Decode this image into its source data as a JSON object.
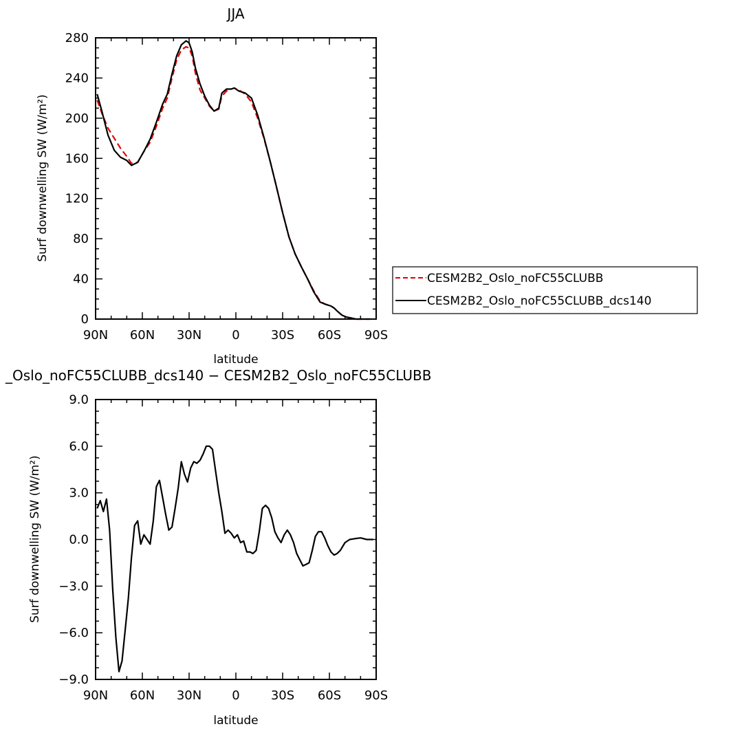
{
  "chart_data": [
    {
      "type": "line",
      "title": "JJA",
      "xlabel": "latitude",
      "ylabel": "Surf downwelling SW (W/m²)",
      "xlim": [
        90,
        -90
      ],
      "ylim": [
        0,
        280
      ],
      "x_tick_values": [
        90,
        60,
        30,
        0,
        -30,
        -60,
        -90
      ],
      "x_tick_labels": [
        "90N",
        "60N",
        "30N",
        "0",
        "30S",
        "60S",
        "90S"
      ],
      "y_tick_values": [
        0,
        40,
        80,
        120,
        160,
        200,
        240,
        280
      ],
      "y_tick_labels": [
        "0",
        "40",
        "80",
        "120",
        "160",
        "200",
        "240",
        "280"
      ],
      "legend_position": "right",
      "grid": false,
      "series": [
        {
          "name": "CESM2B2_Oslo_noFC55CLUBB",
          "color": "#e00000",
          "dash": "dashed",
          "x": [
            89,
            86,
            82,
            78,
            74,
            70,
            67,
            63,
            59,
            55,
            51,
            47,
            44,
            41,
            38,
            35,
            32,
            30,
            28,
            26,
            23,
            20,
            17,
            14,
            11,
            9,
            6,
            3,
            1,
            -2,
            -6,
            -10,
            -14,
            -18,
            -22,
            -26,
            -30,
            -34,
            -38,
            -42,
            -46,
            -50,
            -54,
            -57,
            -59,
            -61,
            -63,
            -65,
            -68,
            -71,
            -74,
            -77,
            -80,
            -83,
            -86
          ],
          "y": [
            218,
            205,
            190,
            180,
            170,
            162,
            155,
            156,
            167,
            176,
            192,
            210,
            220,
            240,
            258,
            268,
            271,
            270,
            262,
            245,
            228,
            220,
            212,
            207,
            209,
            222,
            227,
            229,
            230,
            228,
            224,
            216,
            200,
            180,
            157,
            132,
            106,
            82,
            65,
            52,
            40,
            28,
            18,
            15,
            14,
            13,
            11,
            8,
            4,
            2,
            1,
            0,
            0,
            0,
            0
          ]
        },
        {
          "name": "CESM2B2_Oslo_noFC55CLUBB_dcs140",
          "color": "#000000",
          "dash": "solid",
          "x": [
            89,
            86,
            82,
            78,
            74,
            70,
            67,
            63,
            59,
            55,
            51,
            47,
            44,
            41,
            38,
            35,
            32,
            30,
            28,
            26,
            23,
            20,
            17,
            14,
            11,
            9,
            6,
            3,
            1,
            -2,
            -6,
            -10,
            -14,
            -18,
            -22,
            -26,
            -30,
            -34,
            -38,
            -42,
            -46,
            -50,
            -54,
            -57,
            -59,
            -61,
            -63,
            -65,
            -68,
            -71,
            -74,
            -77,
            -80,
            -83,
            -86
          ],
          "y": [
            224,
            207,
            183,
            168,
            161,
            158,
            153,
            156,
            167,
            179,
            196,
            214,
            224,
            244,
            262,
            273,
            277,
            275,
            266,
            250,
            234,
            222,
            213,
            207,
            210,
            225,
            229,
            229,
            230,
            227,
            225,
            220,
            203,
            181,
            157,
            132,
            106,
            82,
            65,
            52,
            40,
            27,
            17,
            15,
            14,
            13,
            11,
            8,
            4,
            2,
            1,
            0,
            0,
            0,
            0
          ]
        }
      ]
    },
    {
      "type": "line",
      "title": "_Oslo_noFC55CLUBB_dcs140 − CESM2B2_Oslo_noFC55CLUBB",
      "xlabel": "latitude",
      "ylabel": "Surf downwelling SW (W/m²)",
      "xlim": [
        90,
        -90
      ],
      "ylim": [
        -9,
        9
      ],
      "x_tick_values": [
        90,
        60,
        30,
        0,
        -30,
        -60,
        -90
      ],
      "x_tick_labels": [
        "90N",
        "60N",
        "30N",
        "0",
        "30S",
        "60S",
        "90S"
      ],
      "y_tick_values": [
        9,
        6,
        3,
        0,
        -3,
        -6,
        -9
      ],
      "y_tick_labels": [
        "9.0",
        "6.0",
        "3.0",
        "0.0",
        "−3.0",
        "−6.0",
        "−9.0"
      ],
      "grid": false,
      "series": [
        {
          "color": "#000000",
          "dash": "solid",
          "x": [
            89,
            87,
            85,
            83,
            81,
            79,
            77,
            75,
            73,
            71,
            69,
            67,
            65,
            63,
            61,
            59,
            57,
            55,
            53,
            51,
            49,
            47,
            45,
            43,
            41,
            39,
            37,
            35,
            33,
            31,
            29,
            27,
            25,
            23,
            21,
            19,
            17,
            15,
            13,
            11,
            9,
            7,
            5,
            3,
            1,
            -1,
            -3,
            -5,
            -7,
            -9,
            -11,
            -13,
            -15,
            -17,
            -19,
            -21,
            -23,
            -25,
            -27,
            -29,
            -31,
            -33,
            -35,
            -37,
            -39,
            -41,
            -43,
            -45,
            -47,
            -49,
            -51,
            -53,
            -55,
            -57,
            -59,
            -61,
            -63,
            -65,
            -67,
            -70,
            -73,
            -76,
            -80,
            -84,
            -88
          ],
          "y": [
            2.0,
            2.5,
            1.8,
            2.6,
            0.6,
            -3.2,
            -6.3,
            -8.5,
            -7.8,
            -5.8,
            -3.8,
            -1.2,
            0.9,
            1.2,
            -0.3,
            0.3,
            0.0,
            -0.3,
            1.2,
            3.4,
            3.8,
            2.7,
            1.6,
            0.6,
            0.8,
            2.0,
            3.3,
            5.0,
            4.2,
            3.7,
            4.6,
            5.0,
            4.9,
            5.1,
            5.5,
            6.0,
            6.0,
            5.8,
            4.4,
            3.0,
            1.8,
            0.4,
            0.6,
            0.4,
            0.1,
            0.3,
            -0.2,
            -0.1,
            -0.8,
            -0.8,
            -0.9,
            -0.7,
            0.5,
            2.0,
            2.2,
            2.0,
            1.4,
            0.5,
            0.1,
            -0.2,
            0.3,
            0.6,
            0.3,
            -0.2,
            -0.9,
            -1.3,
            -1.7,
            -1.6,
            -1.5,
            -0.7,
            0.2,
            0.5,
            0.5,
            0.1,
            -0.4,
            -0.8,
            -1.0,
            -0.9,
            -0.7,
            -0.2,
            0.0,
            0.05,
            0.1,
            0.0,
            0.0
          ]
        }
      ]
    }
  ]
}
